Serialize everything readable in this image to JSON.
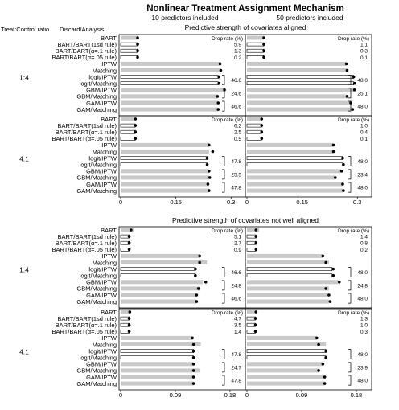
{
  "chart_data": {
    "type": "bar",
    "title": "Nonlinear Treatment Assignment Mechanism",
    "column_headers": [
      "10 predictors included",
      "50 predictors included"
    ],
    "row_header": "Treat:Control ratio",
    "method_header": "Discard/Analysis",
    "drop_rate_label": "Drop rate (%)",
    "methods": [
      "BART",
      "BART/BART(1sd rule)",
      "BART/BART(α=.1 rule)",
      "BART/BART(α=.05 rule)",
      "IPTW",
      "Matching",
      "logit/IPTW",
      "logit/Matching",
      "GBM/IPTW",
      "GBM/Matching",
      "GAM/IPTW",
      "GAM/Matching"
    ],
    "bar_styles": [
      "gray",
      "white",
      "white",
      "white",
      "gray",
      "gray",
      "white",
      "white",
      "gray",
      "gray",
      "gray",
      "gray"
    ],
    "sections": [
      {
        "title": "Predictive strength of covariates aligned",
        "xlim": [
          0,
          0.33
        ],
        "xticks": [
          "0",
          "0.15",
          "0.3"
        ],
        "xtick_values": [
          0,
          0.15,
          0.3
        ],
        "panels": [
          {
            "ratio": "1:4",
            "columns": [
              {
                "bar": [
                  0.046,
                  0.046,
                  0.046,
                  0.046,
                  0.27,
                  0.27,
                  0.265,
                  0.265,
                  0.28,
                  0.265,
                  0.265,
                  0.265
                ],
                "dot": [
                  0.046,
                  0.046,
                  0.046,
                  0.046,
                  0.27,
                  0.272,
                  0.267,
                  0.267,
                  0.282,
                  0.263,
                  0.265,
                  0.265
                ],
                "drop_bart": [
                  "5.9",
                  "1.3",
                  "0.2"
                ],
                "drop_pairs": [
                  "46.6",
                  "24.6",
                  "46.6"
                ]
              },
              {
                "bar": [
                  0.046,
                  0.046,
                  0.046,
                  0.046,
                  0.27,
                  0.27,
                  0.29,
                  0.29,
                  0.29,
                  0.27,
                  0.28,
                  0.285
                ],
                "dot": [
                  0.046,
                  0.046,
                  0.046,
                  0.046,
                  0.27,
                  0.272,
                  0.29,
                  0.292,
                  0.292,
                  0.272,
                  0.282,
                  0.287
                ],
                "drop_bart": [
                  "1.1",
                  "0.3",
                  "0.1"
                ],
                "drop_pairs": [
                  "48.0",
                  "25.1",
                  "48.0"
                ]
              }
            ]
          },
          {
            "ratio": "4:1",
            "columns": [
              {
                "bar": [
                  0.04,
                  0.04,
                  0.04,
                  0.04,
                  0.24,
                  0.24,
                  0.235,
                  0.235,
                  0.24,
                  0.24,
                  0.24,
                  0.24
                ],
                "dot": [
                  0.04,
                  0.04,
                  0.04,
                  0.04,
                  0.24,
                  0.25,
                  0.235,
                  0.235,
                  0.24,
                  0.242,
                  0.237,
                  0.24
                ],
                "drop_bart": [
                  "6.2",
                  "2.5",
                  "0.5"
                ],
                "drop_pairs": [
                  "47.8",
                  "25.5",
                  "47.8"
                ]
              },
              {
                "bar": [
                  0.04,
                  0.04,
                  0.04,
                  0.04,
                  0.235,
                  0.235,
                  0.26,
                  0.26,
                  0.255,
                  0.24,
                  0.26,
                  0.26
                ],
                "dot": [
                  0.04,
                  0.04,
                  0.04,
                  0.04,
                  0.235,
                  0.235,
                  0.26,
                  0.262,
                  0.257,
                  0.24,
                  0.26,
                  0.262
                ],
                "drop_bart": [
                  "1.0",
                  "0.4",
                  "0.1"
                ],
                "drop_pairs": [
                  "48.0",
                  "23.4",
                  "48.0"
                ]
              }
            ]
          }
        ]
      },
      {
        "title": "Predictive strength of covariates not well aligned",
        "xlim": [
          0,
          0.2
        ],
        "xticks": [
          "0",
          "0.09",
          "0.18"
        ],
        "xtick_values": [
          0,
          0.09,
          0.18
        ],
        "panels": [
          {
            "ratio": "1:4",
            "columns": [
              {
                "bar": [
                  0.022,
                  0.014,
                  0.014,
                  0.014,
                  0.13,
                  0.142,
                  0.123,
                  0.123,
                  0.135,
                  0.13,
                  0.125,
                  0.125
                ],
                "dot": [
                  0.017,
                  0.014,
                  0.014,
                  0.014,
                  0.13,
                  0.13,
                  0.123,
                  0.123,
                  0.14,
                  0.128,
                  0.125,
                  0.125
                ],
                "drop_bart": [
                  "5.1",
                  "2.7",
                  "0.9"
                ],
                "drop_pairs": [
                  "46.6",
                  "24.8",
                  "46.6"
                ]
              },
              {
                "bar": [
                  0.02,
                  0.015,
                  0.015,
                  0.015,
                  0.125,
                  0.135,
                  0.14,
                  0.14,
                  0.15,
                  0.135,
                  0.135,
                  0.135
                ],
                "dot": [
                  0.015,
                  0.015,
                  0.015,
                  0.015,
                  0.125,
                  0.13,
                  0.142,
                  0.142,
                  0.152,
                  0.13,
                  0.135,
                  0.137
                ],
                "drop_bart": [
                  "1.4",
                  "0.8",
                  "0.2"
                ],
                "drop_pairs": [
                  "48.0",
                  "24.8",
                  "48.0"
                ]
              }
            ]
          },
          {
            "ratio": "4:1",
            "columns": [
              {
                "bar": [
                  0.015,
                  0.014,
                  0.014,
                  0.014,
                  0.118,
                  0.132,
                  0.12,
                  0.12,
                  0.12,
                  0.13,
                  0.12,
                  0.12
                ],
                "dot": [
                  0.015,
                  0.014,
                  0.014,
                  0.014,
                  0.118,
                  0.12,
                  0.12,
                  0.12,
                  0.12,
                  0.12,
                  0.12,
                  0.12
                ],
                "drop_bart": [
                  "4.7",
                  "3.5",
                  "1.4"
                ],
                "drop_pairs": [
                  "47.8",
                  "24.7",
                  "47.8"
                ]
              },
              {
                "bar": [
                  0.015,
                  0.014,
                  0.014,
                  0.014,
                  0.115,
                  0.13,
                  0.13,
                  0.13,
                  0.125,
                  0.118,
                  0.128,
                  0.128
                ],
                "dot": [
                  0.015,
                  0.014,
                  0.014,
                  0.014,
                  0.115,
                  0.118,
                  0.13,
                  0.13,
                  0.125,
                  0.118,
                  0.128,
                  0.128
                ],
                "drop_bart": [
                  "1.3",
                  "1.0",
                  "0.3"
                ],
                "drop_pairs": [
                  "48.0",
                  "23.9",
                  "48.0"
                ]
              }
            ]
          }
        ]
      }
    ]
  }
}
